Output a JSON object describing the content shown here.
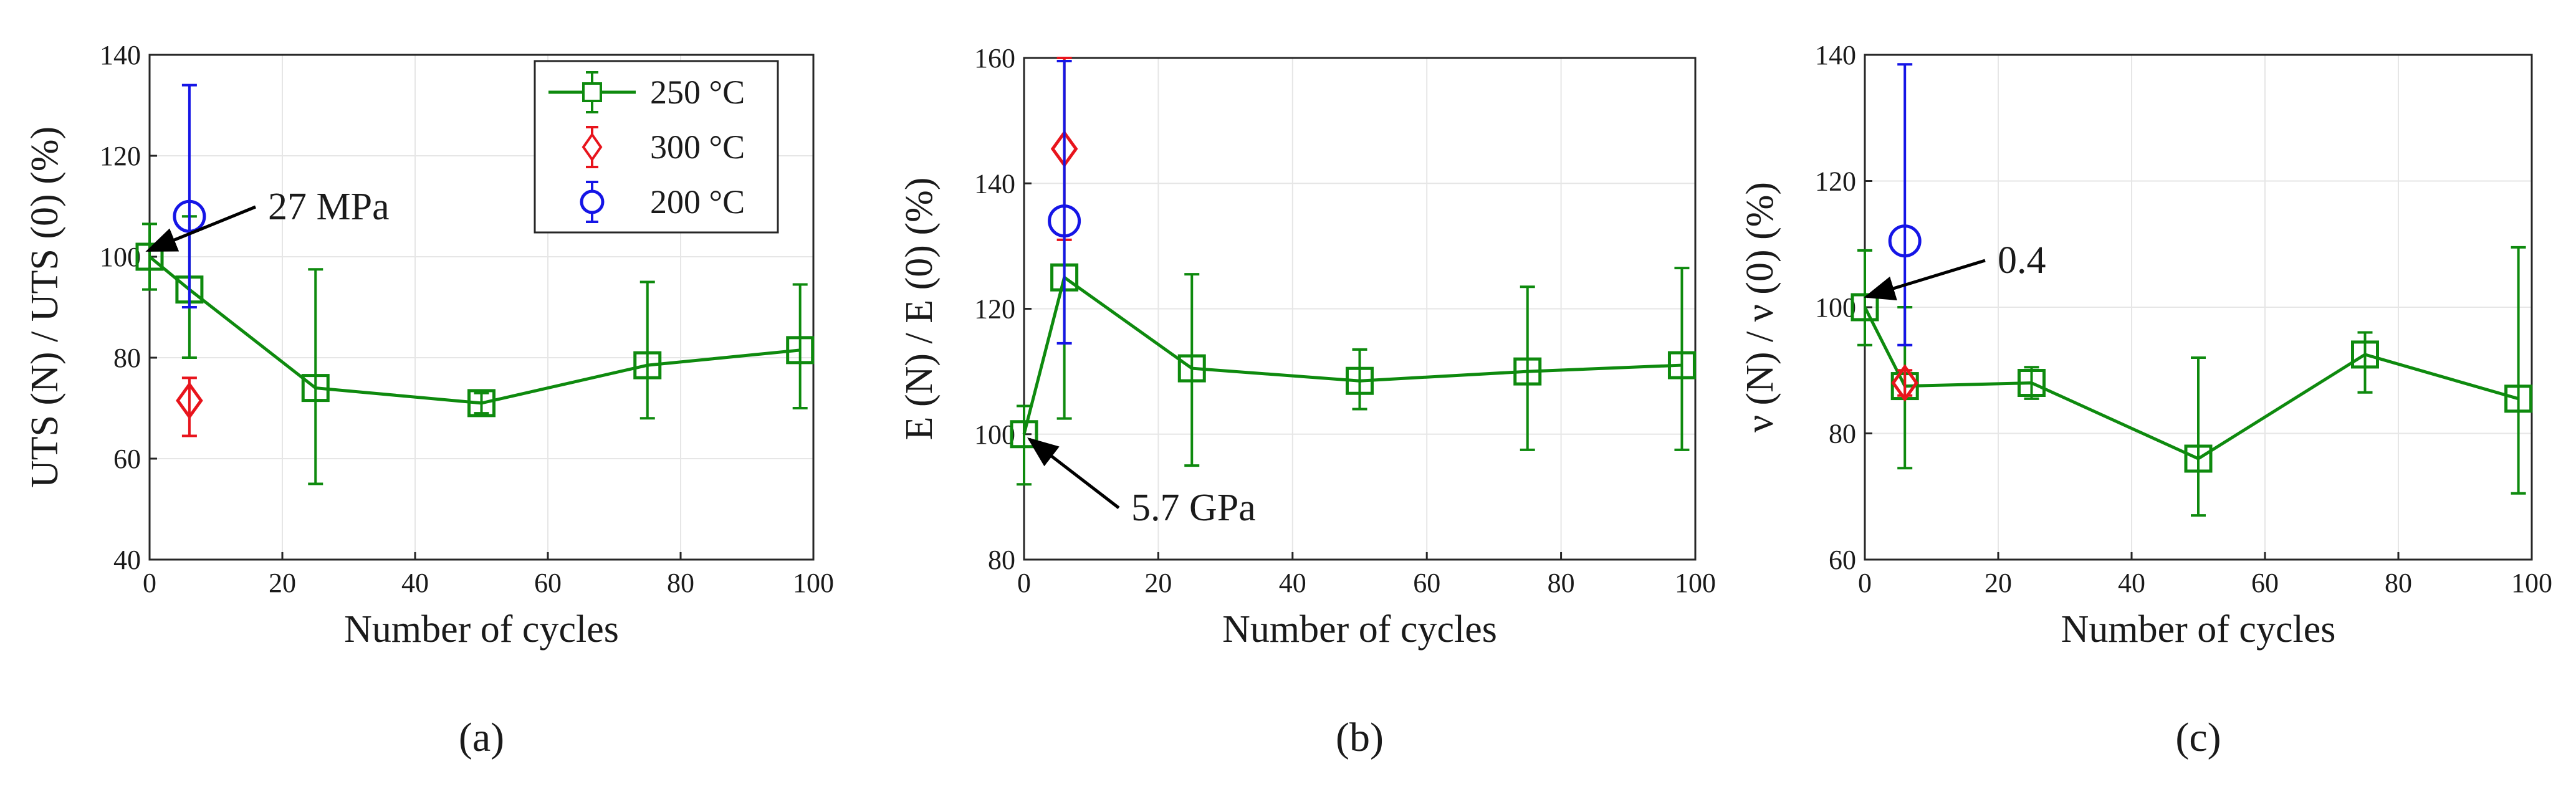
{
  "colors": {
    "250C": "#0e8a0e",
    "300C": "#e8141c",
    "200C": "#1515e6",
    "grid": "#e6e6e6",
    "axis": "#262626"
  },
  "legend": {
    "items": [
      {
        "label": "250 °C",
        "color": "#0e8a0e",
        "marker": "square"
      },
      {
        "label": "300 °C",
        "color": "#e8141c",
        "marker": "diamond"
      },
      {
        "label": "200 °C",
        "color": "#1515e6",
        "marker": "circle"
      }
    ]
  },
  "chart_data": [
    {
      "type": "line",
      "panel_label": "(a)",
      "xlabel": "Number of cycles",
      "ylabel": "UTS (N) / UTS (0)   (%)",
      "xlim": [
        0,
        100
      ],
      "ylim": [
        40,
        140
      ],
      "xticks": [
        0,
        20,
        40,
        60,
        80,
        100
      ],
      "yticks": [
        40,
        60,
        80,
        100,
        120,
        140
      ],
      "grid": true,
      "legend_position": "top-right",
      "annotation": {
        "text": "27 MPa",
        "x": 0,
        "y": 100
      },
      "series": [
        {
          "name": "250 °C",
          "marker": "square",
          "connected": true,
          "points": [
            {
              "x": 0,
              "y": 100,
              "err_low": 93.5,
              "err_high": 106.5
            },
            {
              "x": 6,
              "y": 93.5,
              "err_low": 80,
              "err_high": 108
            },
            {
              "x": 25,
              "y": 74,
              "err_low": 55,
              "err_high": 97.5
            },
            {
              "x": 50,
              "y": 71,
              "err_low": 69,
              "err_high": 73
            },
            {
              "x": 75,
              "y": 78.5,
              "err_low": 68,
              "err_high": 95
            },
            {
              "x": 98,
              "y": 81.5,
              "err_low": 70,
              "err_high": 94.5
            }
          ]
        },
        {
          "name": "300 °C",
          "marker": "diamond",
          "connected": false,
          "points": [
            {
              "x": 6,
              "y": 71.5,
              "err_low": 64.5,
              "err_high": 76
            }
          ]
        },
        {
          "name": "200 °C",
          "marker": "circle",
          "connected": false,
          "points": [
            {
              "x": 6,
              "y": 108,
              "err_low": 90,
              "err_high": 134
            }
          ]
        }
      ]
    },
    {
      "type": "line",
      "panel_label": "(b)",
      "xlabel": "Number of cycles",
      "ylabel": "E (N) / E (0)   (%)",
      "xlim": [
        0,
        100
      ],
      "ylim": [
        80,
        160
      ],
      "xticks": [
        0,
        20,
        40,
        60,
        80,
        100
      ],
      "yticks": [
        80,
        100,
        120,
        140,
        160
      ],
      "grid": true,
      "annotation": {
        "text": "5.7 GPa",
        "x": 0,
        "y": 100
      },
      "series": [
        {
          "name": "250 °C",
          "marker": "square",
          "connected": true,
          "points": [
            {
              "x": 0,
              "y": 100,
              "err_low": 92,
              "err_high": 104.5
            },
            {
              "x": 6,
              "y": 125,
              "err_low": 102.5,
              "err_high": 160
            },
            {
              "x": 25,
              "y": 110.5,
              "err_low": 95,
              "err_high": 125.5
            },
            {
              "x": 50,
              "y": 108.5,
              "err_low": 104,
              "err_high": 113.5
            },
            {
              "x": 75,
              "y": 110,
              "err_low": 97.5,
              "err_high": 123.5
            },
            {
              "x": 98,
              "y": 111,
              "err_low": 97.5,
              "err_high": 126.5
            }
          ]
        },
        {
          "name": "300 °C",
          "marker": "diamond",
          "connected": false,
          "points": [
            {
              "x": 6,
              "y": 145.5,
              "err_low": 131,
              "err_high": 160.5
            }
          ]
        },
        {
          "name": "200 °C",
          "marker": "circle",
          "connected": false,
          "points": [
            {
              "x": 6,
              "y": 134,
              "err_low": 114.5,
              "err_high": 159.5
            }
          ]
        }
      ]
    },
    {
      "type": "line",
      "panel_label": "(c)",
      "xlabel": "Number of cycles",
      "ylabel": "ν (N) / ν (0)   (%)",
      "xlim": [
        0,
        100
      ],
      "ylim": [
        60,
        140
      ],
      "xticks": [
        0,
        20,
        40,
        60,
        80,
        100
      ],
      "yticks": [
        60,
        80,
        100,
        120,
        140
      ],
      "grid": true,
      "annotation": {
        "text": "0.4",
        "x": 0,
        "y": 100
      },
      "series": [
        {
          "name": "250 °C",
          "marker": "square",
          "connected": true,
          "points": [
            {
              "x": 0,
              "y": 100,
              "err_low": 94,
              "err_high": 109
            },
            {
              "x": 6,
              "y": 87.5,
              "err_low": 74.5,
              "err_high": 100
            },
            {
              "x": 25,
              "y": 88,
              "err_low": 85.5,
              "err_high": 90.5
            },
            {
              "x": 50,
              "y": 76,
              "err_low": 67,
              "err_high": 92
            },
            {
              "x": 75,
              "y": 92.5,
              "err_low": 86.5,
              "err_high": 96
            },
            {
              "x": 98,
              "y": 85.5,
              "err_low": 70.5,
              "err_high": 109.5
            }
          ]
        },
        {
          "name": "300 °C",
          "marker": "diamond",
          "connected": false,
          "points": [
            {
              "x": 6,
              "y": 88,
              "err_low": 86,
              "err_high": 90
            }
          ]
        },
        {
          "name": "200 °C",
          "marker": "circle",
          "connected": false,
          "points": [
            {
              "x": 6,
              "y": 110.5,
              "err_low": 94,
              "err_high": 138.5
            }
          ]
        }
      ]
    }
  ]
}
